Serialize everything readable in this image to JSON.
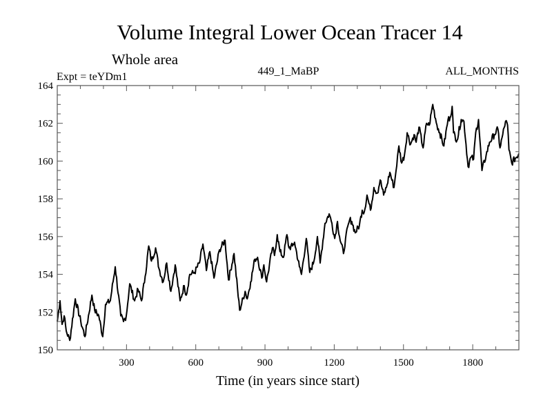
{
  "chart_data": {
    "type": "line",
    "title": "Volume Integral Lower Ocean Tracer 14",
    "subtitle": "Whole area",
    "annotations": {
      "left": "Expt = teYDm1",
      "center": "449_1_MaBP",
      "right": "ALL_MONTHS"
    },
    "xlabel": "Time (in years since start)",
    "ylabel": "",
    "xlim": [
      0,
      2000
    ],
    "ylim": [
      150,
      164
    ],
    "xticks": [
      300,
      600,
      900,
      1200,
      1500,
      1800
    ],
    "xtick_labels": [
      "300",
      "600",
      "900",
      "1200",
      "1500",
      "1800"
    ],
    "yticks": [
      150,
      152,
      154,
      156,
      158,
      160,
      162,
      164
    ],
    "ytick_labels": [
      "150",
      "152",
      "154",
      "156",
      "158",
      "160",
      "162",
      "164"
    ],
    "grid": false,
    "legend": "none",
    "series": [
      {
        "name": "Volume Integral Lower Ocean Tracer 14",
        "color": "#000000",
        "x": [
          0,
          12,
          21,
          30,
          39,
          54,
          78,
          102,
          120,
          150,
          162,
          180,
          197,
          209,
          230,
          251,
          275,
          287,
          299,
          314,
          335,
          350,
          365,
          381,
          396,
          408,
          426,
          441,
          459,
          474,
          492,
          511,
          532,
          550,
          559,
          574,
          595,
          616,
          631,
          646,
          661,
          679,
          703,
          727,
          742,
          766,
          790,
          814,
          823,
          838,
          856,
          868,
          886,
          895,
          907,
          932,
          941,
          953,
          965,
          980,
          995,
          1004,
          1019,
          1028,
          1049,
          1058,
          1079,
          1094,
          1112,
          1127,
          1139,
          1160,
          1178,
          1190,
          1202,
          1214,
          1223,
          1240,
          1249,
          1267,
          1276,
          1291,
          1309,
          1321,
          1330,
          1342,
          1357,
          1372,
          1387,
          1399,
          1414,
          1426,
          1441,
          1459,
          1465,
          1480,
          1492,
          1504,
          1516,
          1531,
          1546,
          1555,
          1567,
          1585,
          1600,
          1612,
          1627,
          1645,
          1657,
          1675,
          1693,
          1702,
          1711,
          1717,
          1732,
          1750,
          1762,
          1780,
          1792,
          1804,
          1813,
          1825,
          1840,
          1858,
          1873,
          1894,
          1909,
          1918,
          1930,
          1942,
          1951,
          1957,
          1969,
          2000
        ],
        "y": [
          151.5,
          152.6,
          151.35,
          151.8,
          151.0,
          150.5,
          152.7,
          151.5,
          150.7,
          152.9,
          152.1,
          151.8,
          150.7,
          152.4,
          152.6,
          154.4,
          151.8,
          151.5,
          151.8,
          153.5,
          152.6,
          153.2,
          152.6,
          153.9,
          155.5,
          154.7,
          155.4,
          154.3,
          153.6,
          154.6,
          153.1,
          154.5,
          152.6,
          153.4,
          152.9,
          154.0,
          154.1,
          154.6,
          155.6,
          154.2,
          155.2,
          153.8,
          155.3,
          155.8,
          153.7,
          155.1,
          152.1,
          153.1,
          152.7,
          153.6,
          154.8,
          154.9,
          153.8,
          154.5,
          153.6,
          155.4,
          155.0,
          156.1,
          155.2,
          154.9,
          156.1,
          155.4,
          155.5,
          155.7,
          154.4,
          154.0,
          155.9,
          154.1,
          154.7,
          156.0,
          154.6,
          156.7,
          157.2,
          156.7,
          155.9,
          156.8,
          156.0,
          155.1,
          155.9,
          156.9,
          156.8,
          156.2,
          156.6,
          157.4,
          157.3,
          158.2,
          157.4,
          158.6,
          158.3,
          159.0,
          158.2,
          158.6,
          159.4,
          158.6,
          159.2,
          160.8,
          159.9,
          160.3,
          161.5,
          160.9,
          161.4,
          161.0,
          161.8,
          160.7,
          162.0,
          161.9,
          163.0,
          161.9,
          161.5,
          160.8,
          162.2,
          162.3,
          162.9,
          161.5,
          161.1,
          162.2,
          162.1,
          159.7,
          160.2,
          160.1,
          161.5,
          162.2,
          159.5,
          160.3,
          161.0,
          161.4,
          161.7,
          160.7,
          161.4,
          162.1,
          161.9,
          160.6,
          159.9,
          160.4
        ]
      }
    ]
  }
}
